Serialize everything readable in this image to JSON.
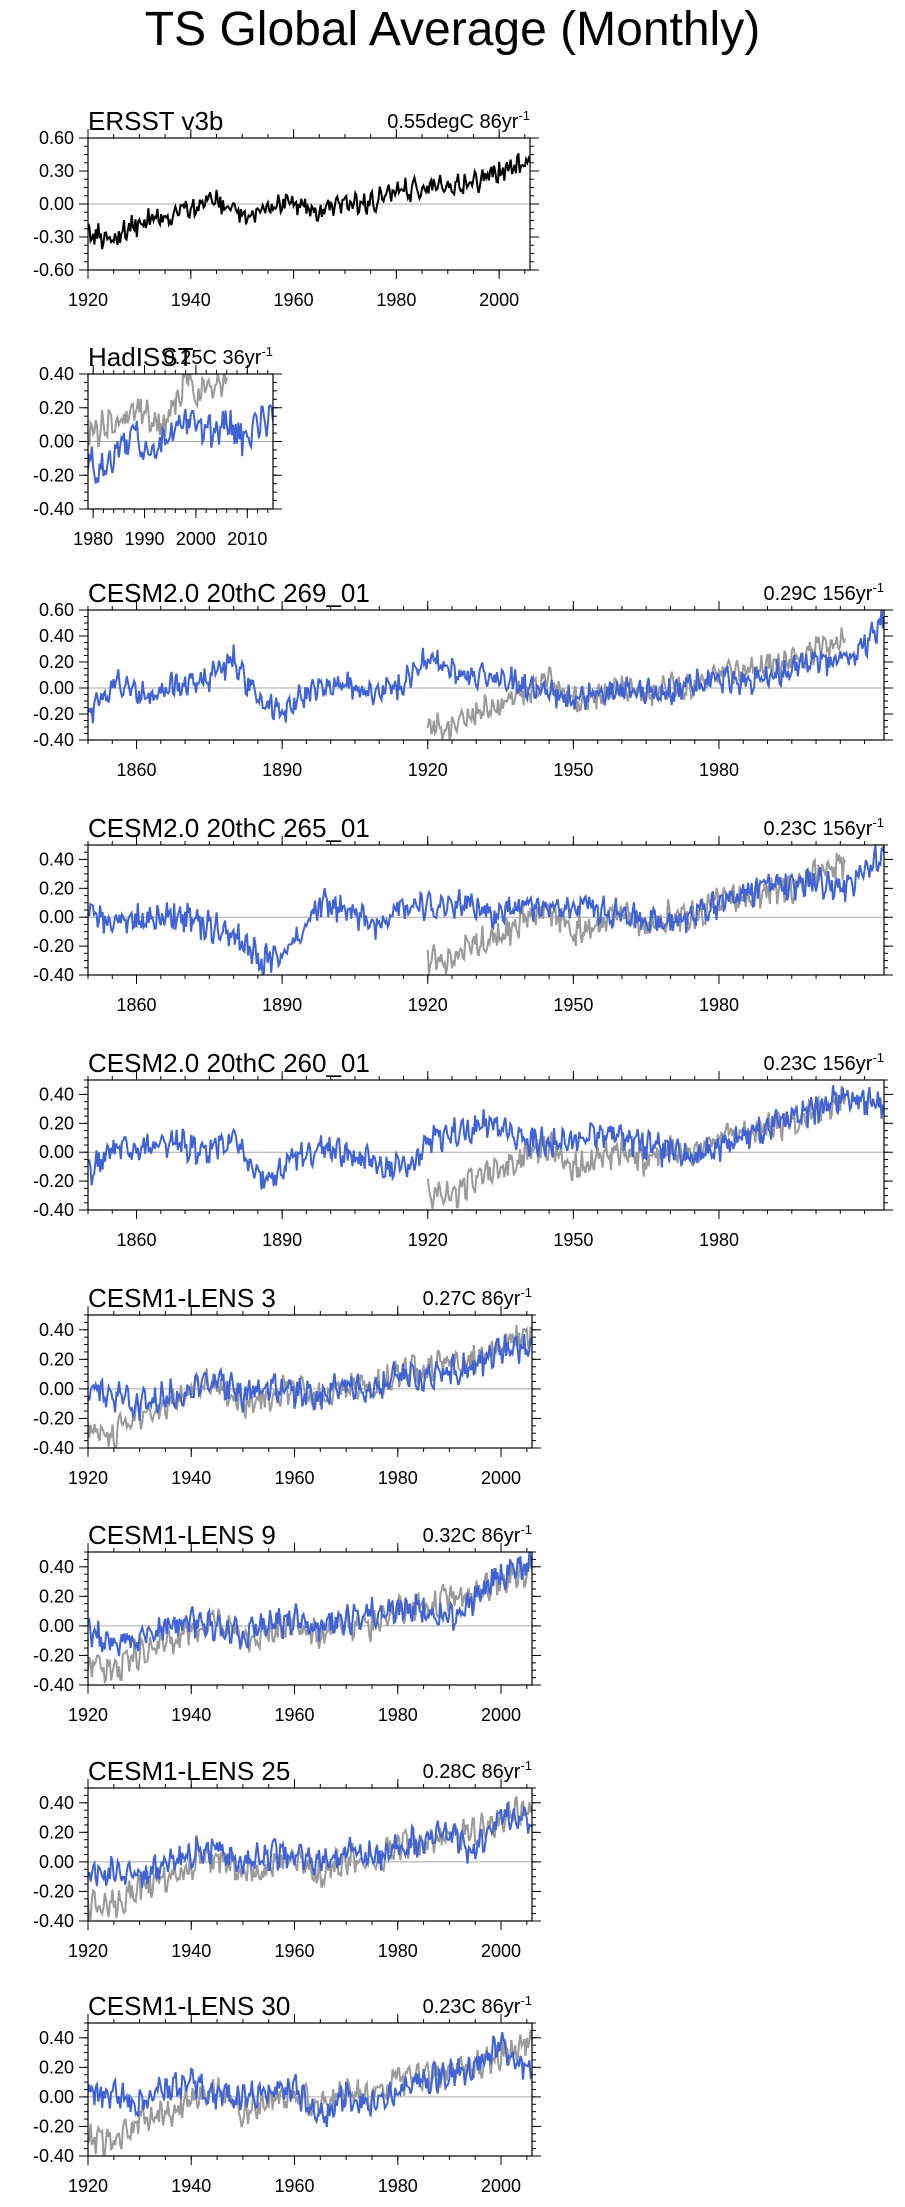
{
  "title": "TS Global Average (Monthly)",
  "colors": {
    "observed": "#9a9a9a",
    "model": "#3f63d6",
    "ersst": "#000000",
    "zero_line": "#a8a8a8"
  },
  "chart_data": [
    {
      "type": "line",
      "title": "ERSST v3b",
      "trend_value": "0.55degC 86yr",
      "trend_exp": "-1",
      "xlim": [
        1920,
        2006
      ],
      "ylim": [
        -0.6,
        0.6
      ],
      "xticks": [
        1920,
        1940,
        1960,
        1980,
        2000
      ],
      "yticks": [
        -0.6,
        -0.3,
        0.0,
        0.3,
        0.6
      ],
      "ytick_labels": [
        "-0.60",
        "-0.30",
        "0.00",
        "0.30",
        "0.60"
      ],
      "series": [
        {
          "name": "ERSST v3b",
          "color": "#000000",
          "x": [
            1920,
            1925,
            1930,
            1935,
            1940,
            1945,
            1950,
            1955,
            1960,
            1965,
            1970,
            1975,
            1980,
            1985,
            1990,
            1995,
            2000,
            2006
          ],
          "y": [
            -0.28,
            -0.3,
            -0.17,
            -0.12,
            -0.02,
            0.05,
            -0.1,
            -0.05,
            0.02,
            -0.08,
            0.02,
            0.0,
            0.12,
            0.13,
            0.18,
            0.2,
            0.3,
            0.38
          ]
        }
      ]
    },
    {
      "type": "line",
      "title": "HadISST",
      "trend_value": "0.25C 36yr",
      "trend_exp": "-1",
      "xlim": [
        1979,
        2015
      ],
      "ylim": [
        -0.4,
        0.4
      ],
      "xticks": [
        1980,
        1990,
        2000,
        2010
      ],
      "yticks": [
        -0.4,
        -0.2,
        0.0,
        0.2,
        0.4
      ],
      "ytick_labels": [
        "-0.40",
        "-0.20",
        "0.00",
        "0.20",
        "0.40"
      ],
      "series": [
        {
          "name": "observed",
          "color": "#9a9a9a",
          "x": [
            1979,
            1982,
            1985,
            1988,
            1991,
            1994,
            1997,
            1998,
            2000,
            2003,
            2006
          ],
          "y": [
            0.05,
            0.1,
            0.08,
            0.18,
            0.15,
            0.12,
            0.28,
            0.45,
            0.25,
            0.35,
            0.38
          ]
        },
        {
          "name": "model",
          "color": "#3f63d6",
          "x": [
            1979,
            1982,
            1985,
            1988,
            1991,
            1994,
            1997,
            2000,
            2003,
            2006,
            2009,
            2012,
            2015
          ],
          "y": [
            -0.12,
            -0.18,
            -0.05,
            0.05,
            -0.1,
            0.02,
            0.08,
            0.1,
            0.05,
            0.12,
            0.02,
            0.1,
            0.12
          ]
        }
      ]
    },
    {
      "type": "line",
      "title": "CESM2.0 20thC 269_01",
      "trend_value": "0.29C 156yr",
      "trend_exp": "-1",
      "xlim": [
        1850,
        2014
      ],
      "ylim": [
        -0.4,
        0.6
      ],
      "xticks": [
        1860,
        1890,
        1920,
        1950,
        1980
      ],
      "yticks": [
        -0.4,
        -0.2,
        0.0,
        0.2,
        0.4,
        0.6
      ],
      "ytick_labels": [
        "-0.40",
        "-0.20",
        "0.00",
        "0.20",
        "0.40",
        "0.60"
      ],
      "series": [
        {
          "name": "observed",
          "color": "#9a9a9a",
          "x": [
            1920,
            1925,
            1930,
            1935,
            1940,
            1945,
            1950,
            1955,
            1960,
            1965,
            1970,
            1975,
            1980,
            1985,
            1990,
            1995,
            2000,
            2006
          ],
          "y": [
            -0.28,
            -0.3,
            -0.17,
            -0.12,
            -0.02,
            0.05,
            -0.1,
            -0.05,
            0.02,
            -0.08,
            0.02,
            0.0,
            0.12,
            0.13,
            0.18,
            0.2,
            0.3,
            0.38
          ]
        },
        {
          "name": "model",
          "color": "#3f63d6",
          "x": [
            1850,
            1856,
            1862,
            1868,
            1874,
            1880,
            1884,
            1890,
            1896,
            1902,
            1908,
            1914,
            1920,
            1926,
            1932,
            1938,
            1944,
            1950,
            1956,
            1962,
            1968,
            1974,
            1980,
            1986,
            1992,
            1998,
            2004,
            2010,
            2014
          ],
          "y": [
            -0.2,
            0.05,
            -0.08,
            0.02,
            0.05,
            0.22,
            -0.05,
            -0.18,
            -0.02,
            0.05,
            -0.05,
            0.0,
            0.25,
            0.12,
            0.08,
            0.05,
            -0.02,
            -0.1,
            -0.05,
            0.0,
            -0.05,
            0.02,
            0.08,
            0.05,
            0.12,
            0.18,
            0.22,
            0.3,
            0.55
          ]
        }
      ]
    },
    {
      "type": "line",
      "title": "CESM2.0 20thC 265_01",
      "trend_value": "0.23C 156yr",
      "trend_exp": "-1",
      "xlim": [
        1850,
        2014
      ],
      "ylim": [
        -0.4,
        0.5
      ],
      "xticks": [
        1860,
        1890,
        1920,
        1950,
        1980
      ],
      "yticks": [
        -0.4,
        -0.2,
        0.0,
        0.2,
        0.4
      ],
      "ytick_labels": [
        "-0.40",
        "-0.20",
        "0.00",
        "0.20",
        "0.40"
      ],
      "series": [
        {
          "name": "observed",
          "color": "#9a9a9a",
          "x": [
            1920,
            1925,
            1930,
            1935,
            1940,
            1945,
            1950,
            1955,
            1960,
            1965,
            1970,
            1975,
            1980,
            1985,
            1990,
            1995,
            2000,
            2006
          ],
          "y": [
            -0.28,
            -0.3,
            -0.17,
            -0.12,
            -0.02,
            0.05,
            -0.1,
            -0.05,
            0.02,
            -0.08,
            0.02,
            0.0,
            0.12,
            0.13,
            0.18,
            0.2,
            0.3,
            0.38
          ]
        },
        {
          "name": "model",
          "color": "#3f63d6",
          "x": [
            1850,
            1856,
            1862,
            1868,
            1874,
            1880,
            1886,
            1892,
            1898,
            1904,
            1910,
            1916,
            1922,
            1928,
            1934,
            1940,
            1946,
            1952,
            1958,
            1964,
            1970,
            1976,
            1982,
            1988,
            1994,
            2000,
            2006,
            2014
          ],
          "y": [
            0.02,
            -0.05,
            0.0,
            0.02,
            -0.05,
            -0.12,
            -0.3,
            -0.18,
            0.1,
            0.05,
            -0.05,
            0.12,
            0.05,
            0.1,
            0.0,
            0.1,
            0.05,
            0.08,
            0.02,
            0.0,
            -0.05,
            0.05,
            0.12,
            0.2,
            0.22,
            0.25,
            0.2,
            0.45
          ]
        }
      ]
    },
    {
      "type": "line",
      "title": "CESM2.0 20thC 260_01",
      "trend_value": "0.23C 156yr",
      "trend_exp": "-1",
      "xlim": [
        1850,
        2014
      ],
      "ylim": [
        -0.4,
        0.5
      ],
      "xticks": [
        1860,
        1890,
        1920,
        1950,
        1980
      ],
      "yticks": [
        -0.4,
        -0.2,
        0.0,
        0.2,
        0.4
      ],
      "ytick_labels": [
        "-0.40",
        "-0.20",
        "0.00",
        "0.20",
        "0.40"
      ],
      "series": [
        {
          "name": "observed",
          "color": "#9a9a9a",
          "x": [
            1920,
            1925,
            1930,
            1935,
            1940,
            1945,
            1950,
            1955,
            1960,
            1965,
            1970,
            1975,
            1980,
            1985,
            1990,
            1995,
            2000,
            2006
          ],
          "y": [
            -0.28,
            -0.3,
            -0.17,
            -0.12,
            -0.02,
            0.05,
            -0.1,
            -0.05,
            0.02,
            -0.08,
            0.02,
            0.0,
            0.12,
            0.13,
            0.18,
            0.2,
            0.3,
            0.38
          ]
        },
        {
          "name": "model",
          "color": "#3f63d6",
          "x": [
            1850,
            1856,
            1862,
            1868,
            1874,
            1880,
            1886,
            1892,
            1898,
            1904,
            1910,
            1916,
            1922,
            1928,
            1934,
            1940,
            1946,
            1952,
            1958,
            1964,
            1970,
            1976,
            1982,
            1988,
            1994,
            2000,
            2006,
            2014
          ],
          "y": [
            -0.15,
            0.05,
            0.02,
            0.08,
            0.0,
            0.1,
            -0.22,
            -0.05,
            0.02,
            -0.02,
            -0.1,
            -0.08,
            0.1,
            0.15,
            0.2,
            0.08,
            0.05,
            0.1,
            0.12,
            0.05,
            0.0,
            -0.02,
            0.05,
            0.15,
            0.25,
            0.28,
            0.4,
            0.3
          ]
        }
      ]
    },
    {
      "type": "line",
      "title": "CESM1-LENS 3",
      "trend_value": "0.27C 86yr",
      "trend_exp": "-1",
      "xlim": [
        1920,
        2006
      ],
      "ylim": [
        -0.4,
        0.5
      ],
      "xticks": [
        1920,
        1940,
        1960,
        1980,
        2000
      ],
      "yticks": [
        -0.4,
        -0.2,
        0.0,
        0.2,
        0.4
      ],
      "ytick_labels": [
        "-0.40",
        "-0.20",
        "0.00",
        "0.20",
        "0.40"
      ],
      "series": [
        {
          "name": "observed",
          "color": "#9a9a9a",
          "x": [
            1920,
            1925,
            1930,
            1935,
            1940,
            1945,
            1950,
            1955,
            1960,
            1965,
            1970,
            1975,
            1980,
            1985,
            1990,
            1995,
            2000,
            2006
          ],
          "y": [
            -0.28,
            -0.3,
            -0.17,
            -0.12,
            -0.02,
            0.05,
            -0.1,
            -0.05,
            0.02,
            -0.08,
            0.02,
            0.0,
            0.12,
            0.13,
            0.18,
            0.2,
            0.3,
            0.38
          ]
        },
        {
          "name": "model",
          "color": "#3f63d6",
          "x": [
            1920,
            1925,
            1930,
            1935,
            1940,
            1945,
            1950,
            1955,
            1960,
            1965,
            1970,
            1975,
            1980,
            1985,
            1990,
            1995,
            2000,
            2006
          ],
          "y": [
            0.0,
            -0.05,
            -0.1,
            -0.05,
            -0.02,
            0.05,
            -0.05,
            0.02,
            -0.02,
            -0.05,
            0.05,
            -0.02,
            0.1,
            0.05,
            0.12,
            0.15,
            0.25,
            0.3
          ]
        }
      ]
    },
    {
      "type": "line",
      "title": "CESM1-LENS 9",
      "trend_value": "0.32C 86yr",
      "trend_exp": "-1",
      "xlim": [
        1920,
        2006
      ],
      "ylim": [
        -0.4,
        0.5
      ],
      "xticks": [
        1920,
        1940,
        1960,
        1980,
        2000
      ],
      "yticks": [
        -0.4,
        -0.2,
        0.0,
        0.2,
        0.4
      ],
      "ytick_labels": [
        "-0.40",
        "-0.20",
        "0.00",
        "0.20",
        "0.40"
      ],
      "series": [
        {
          "name": "observed",
          "color": "#9a9a9a",
          "x": [
            1920,
            1925,
            1930,
            1935,
            1940,
            1945,
            1950,
            1955,
            1960,
            1965,
            1970,
            1975,
            1980,
            1985,
            1990,
            1995,
            2000,
            2006
          ],
          "y": [
            -0.28,
            -0.3,
            -0.17,
            -0.12,
            -0.02,
            0.05,
            -0.1,
            -0.05,
            0.02,
            -0.08,
            0.02,
            0.0,
            0.12,
            0.13,
            0.18,
            0.2,
            0.3,
            0.38
          ]
        },
        {
          "name": "model",
          "color": "#3f63d6",
          "x": [
            1920,
            1925,
            1930,
            1935,
            1940,
            1945,
            1950,
            1955,
            1960,
            1965,
            1970,
            1975,
            1980,
            1985,
            1990,
            1995,
            2000,
            2006
          ],
          "y": [
            -0.05,
            -0.12,
            -0.08,
            -0.02,
            0.02,
            -0.02,
            -0.05,
            0.0,
            0.05,
            -0.02,
            0.05,
            0.08,
            0.12,
            0.1,
            0.05,
            0.2,
            0.35,
            0.4
          ]
        }
      ]
    },
    {
      "type": "line",
      "title": "CESM1-LENS 25",
      "trend_value": "0.28C 86yr",
      "trend_exp": "-1",
      "xlim": [
        1920,
        2006
      ],
      "ylim": [
        -0.4,
        0.5
      ],
      "xticks": [
        1920,
        1940,
        1960,
        1980,
        2000
      ],
      "yticks": [
        -0.4,
        -0.2,
        0.0,
        0.2,
        0.4
      ],
      "ytick_labels": [
        "-0.40",
        "-0.20",
        "0.00",
        "0.20",
        "0.40"
      ],
      "series": [
        {
          "name": "observed",
          "color": "#9a9a9a",
          "x": [
            1920,
            1925,
            1930,
            1935,
            1940,
            1945,
            1950,
            1955,
            1960,
            1965,
            1970,
            1975,
            1980,
            1985,
            1990,
            1995,
            2000,
            2006
          ],
          "y": [
            -0.28,
            -0.3,
            -0.17,
            -0.12,
            -0.02,
            0.05,
            -0.1,
            -0.05,
            0.02,
            -0.08,
            0.02,
            0.0,
            0.12,
            0.13,
            0.18,
            0.2,
            0.3,
            0.38
          ]
        },
        {
          "name": "model",
          "color": "#3f63d6",
          "x": [
            1920,
            1925,
            1930,
            1935,
            1940,
            1945,
            1950,
            1955,
            1960,
            1965,
            1970,
            1975,
            1980,
            1985,
            1990,
            1995,
            2000,
            2006
          ],
          "y": [
            -0.05,
            -0.08,
            -0.1,
            -0.02,
            0.05,
            0.1,
            0.0,
            0.05,
            0.05,
            -0.02,
            0.08,
            0.02,
            0.1,
            0.15,
            0.2,
            0.05,
            0.35,
            0.25
          ]
        }
      ]
    },
    {
      "type": "line",
      "title": "CESM1-LENS 30",
      "trend_value": "0.23C 86yr",
      "trend_exp": "-1",
      "xlim": [
        1920,
        2006
      ],
      "ylim": [
        -0.4,
        0.5
      ],
      "xticks": [
        1920,
        1940,
        1960,
        1980,
        2000
      ],
      "yticks": [
        -0.4,
        -0.2,
        0.0,
        0.2,
        0.4
      ],
      "ytick_labels": [
        "-0.40",
        "-0.20",
        "0.00",
        "0.20",
        "0.40"
      ],
      "series": [
        {
          "name": "observed",
          "color": "#9a9a9a",
          "x": [
            1920,
            1925,
            1930,
            1935,
            1940,
            1945,
            1950,
            1955,
            1960,
            1965,
            1970,
            1975,
            1980,
            1985,
            1990,
            1995,
            2000,
            2006
          ],
          "y": [
            -0.28,
            -0.3,
            -0.17,
            -0.12,
            -0.02,
            0.05,
            -0.1,
            -0.05,
            0.02,
            -0.08,
            0.02,
            0.0,
            0.12,
            0.13,
            0.18,
            0.2,
            0.3,
            0.38
          ]
        },
        {
          "name": "model",
          "color": "#3f63d6",
          "x": [
            1920,
            1925,
            1930,
            1935,
            1940,
            1945,
            1950,
            1955,
            1960,
            1965,
            1970,
            1975,
            1980,
            1985,
            1990,
            1995,
            2000,
            2006
          ],
          "y": [
            0.0,
            0.02,
            -0.05,
            0.05,
            0.08,
            0.0,
            -0.02,
            0.05,
            0.05,
            -0.15,
            0.02,
            -0.05,
            0.05,
            0.12,
            0.15,
            0.2,
            0.35,
            0.15
          ]
        }
      ]
    }
  ]
}
